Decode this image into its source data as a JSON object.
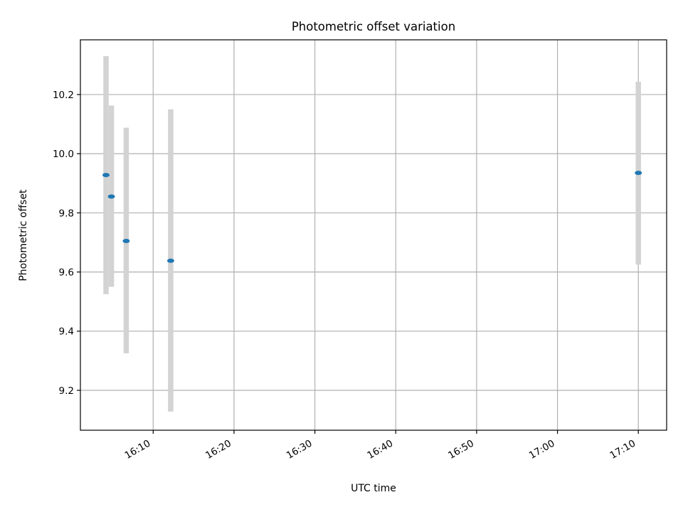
{
  "chart_data": {
    "type": "scatter",
    "title": "Photometric offset variation",
    "xlabel": "UTC time",
    "ylabel": "Photometric offset",
    "xlim": [
      "16:01:00",
      "17:13:30"
    ],
    "ylim": [
      9.065,
      10.385
    ],
    "x_ticks": [
      "16:10",
      "16:20",
      "16:30",
      "16:40",
      "16:50",
      "17:00",
      "17:10"
    ],
    "y_ticks": [
      "9.2",
      "9.4",
      "9.6",
      "9.8",
      "10.0",
      "10.2"
    ],
    "grid": true,
    "points": [
      {
        "x": "16:04:10",
        "y": 9.928,
        "y_low": 9.525,
        "y_high": 10.33
      },
      {
        "x": "16:04:50",
        "y": 9.855,
        "y_low": 9.55,
        "y_high": 10.163
      },
      {
        "x": "16:06:40",
        "y": 9.705,
        "y_low": 9.325,
        "y_high": 10.088
      },
      {
        "x": "16:12:10",
        "y": 9.638,
        "y_low": 9.128,
        "y_high": 10.15
      },
      {
        "x": "17:10:00",
        "y": 9.935,
        "y_low": 9.625,
        "y_high": 10.243
      }
    ],
    "colors": {
      "marker": "#1f77b4",
      "errorbar": "#d3d3d3"
    }
  }
}
